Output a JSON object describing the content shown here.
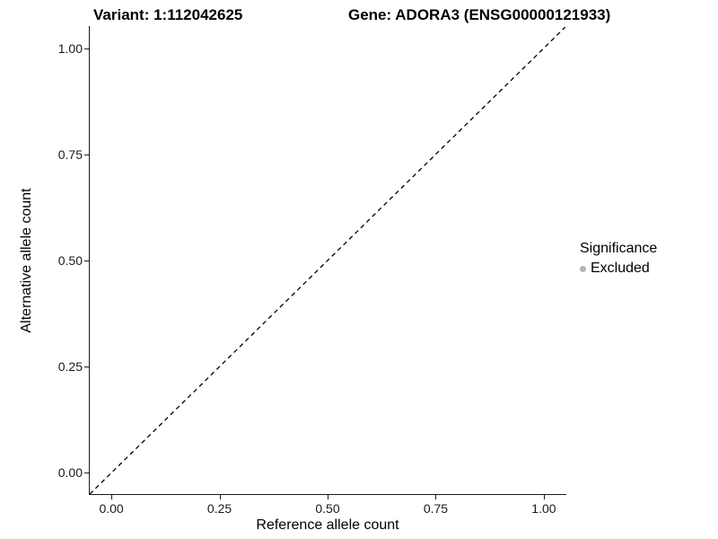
{
  "chart_data": {
    "type": "scatter",
    "title_left": "Variant: 1:112042625",
    "title_right": "Gene: ADORA3 (ENSG00000121933)",
    "xlabel": "Reference allele count",
    "ylabel": "Alternative allele count",
    "xlim": [
      -0.05,
      1.05
    ],
    "ylim": [
      -0.05,
      1.05
    ],
    "x_ticks": {
      "values": [
        0,
        0.25,
        0.5,
        0.75,
        1.0
      ],
      "labels": [
        "0.00",
        "0.25",
        "0.50",
        "0.75",
        "1.00"
      ]
    },
    "y_ticks": {
      "values": [
        0,
        0.25,
        0.5,
        0.75,
        1.0
      ],
      "labels": [
        "0.00",
        "0.25",
        "0.50",
        "0.75",
        "1.00"
      ]
    },
    "points": [],
    "reference_line": {
      "description": "identity line y = x",
      "style": "dashed",
      "color": "#000000",
      "x1": -0.05,
      "y1": -0.05,
      "x2": 1.05,
      "y2": 1.05
    },
    "grid": false,
    "panel_background": "#ffffff",
    "legend": {
      "position": "right",
      "title": "Significance",
      "items": [
        {
          "label": "Excluded",
          "marker": "circle",
          "color": "#b3b3b3"
        }
      ]
    }
  }
}
